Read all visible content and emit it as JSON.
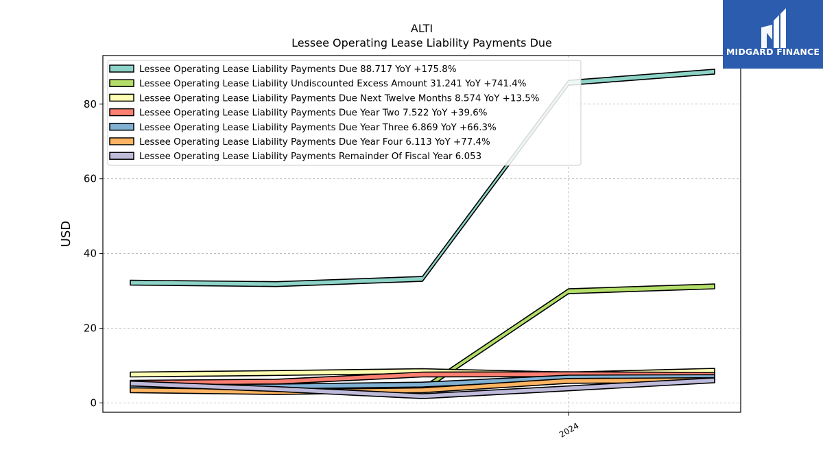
{
  "chart_data": {
    "type": "area",
    "title": "ALTI",
    "subtitle": "Lessee Operating Lease Liability Payments Due",
    "xlabel": "",
    "ylabel": "USD",
    "x": [
      "2023-03",
      "2023-06",
      "2023-09",
      "2023-12",
      "2024-03"
    ],
    "xtick_labels": [
      {
        "x": "2023-12",
        "label": "2024"
      }
    ],
    "ylim": [
      -2.5,
      93
    ],
    "yticks": [
      0,
      20,
      40,
      60,
      80
    ],
    "grid": true,
    "legend_position": "top-left",
    "series": [
      {
        "name": "Lessee Operating Lease Liability Payments Due",
        "legend": "Lessee Operating Lease Liability Payments Due  88.717 YoY +175.8%",
        "color": "#8dd3c7",
        "values": [
          32.2,
          31.8,
          33.2,
          85.7,
          88.7
        ]
      },
      {
        "name": "Lessee Operating Lease Liability Undiscounted Excess Amount",
        "legend": "Lessee Operating Lease Liability Undiscounted Excess Amount  31.241 YoY +741.4%",
        "color": "#b3de69",
        "values": [
          3.7,
          3.2,
          3.6,
          29.9,
          31.2
        ]
      },
      {
        "name": "Lessee Operating Lease Liability Payments Due Next Twelve Months",
        "legend": "Lessee Operating Lease Liability Payments Due Next Twelve Months  8.574 YoY +13.5%",
        "color": "#ffffb3",
        "values": [
          7.6,
          8.0,
          8.5,
          7.6,
          8.6
        ]
      },
      {
        "name": "Lessee Operating Lease Liability Payments Due Year Two",
        "legend": "Lessee Operating Lease Liability Payments Due Year Two  7.522 YoY +39.6%",
        "color": "#fb8072",
        "values": [
          5.4,
          5.7,
          7.6,
          7.7,
          7.5
        ]
      },
      {
        "name": "Lessee Operating Lease Liability Payments Due Year Three",
        "legend": "Lessee Operating Lease Liability Payments Due Year Three  6.869 YoY +66.3%",
        "color": "#80b1d3",
        "values": [
          4.1,
          4.4,
          4.9,
          6.8,
          6.9
        ]
      },
      {
        "name": "Lessee Operating Lease Liability Payments Due Year Four",
        "legend": "Lessee Operating Lease Liability Payments Due Year Four  6.113 YoY +77.4%",
        "color": "#fdb462",
        "values": [
          3.4,
          2.9,
          3.4,
          5.9,
          6.1
        ]
      },
      {
        "name": "Lessee Operating Lease Liability Payments Remainder Of Fiscal Year",
        "legend": "Lessee Operating Lease Liability Payments Remainder Of Fiscal Year  6.053",
        "color": "#bebada",
        "values": [
          5.2,
          3.7,
          1.8,
          3.9,
          6.05
        ]
      }
    ]
  },
  "logo": {
    "text": "MIDGARD FINANCE",
    "background": "#2b5cad"
  }
}
